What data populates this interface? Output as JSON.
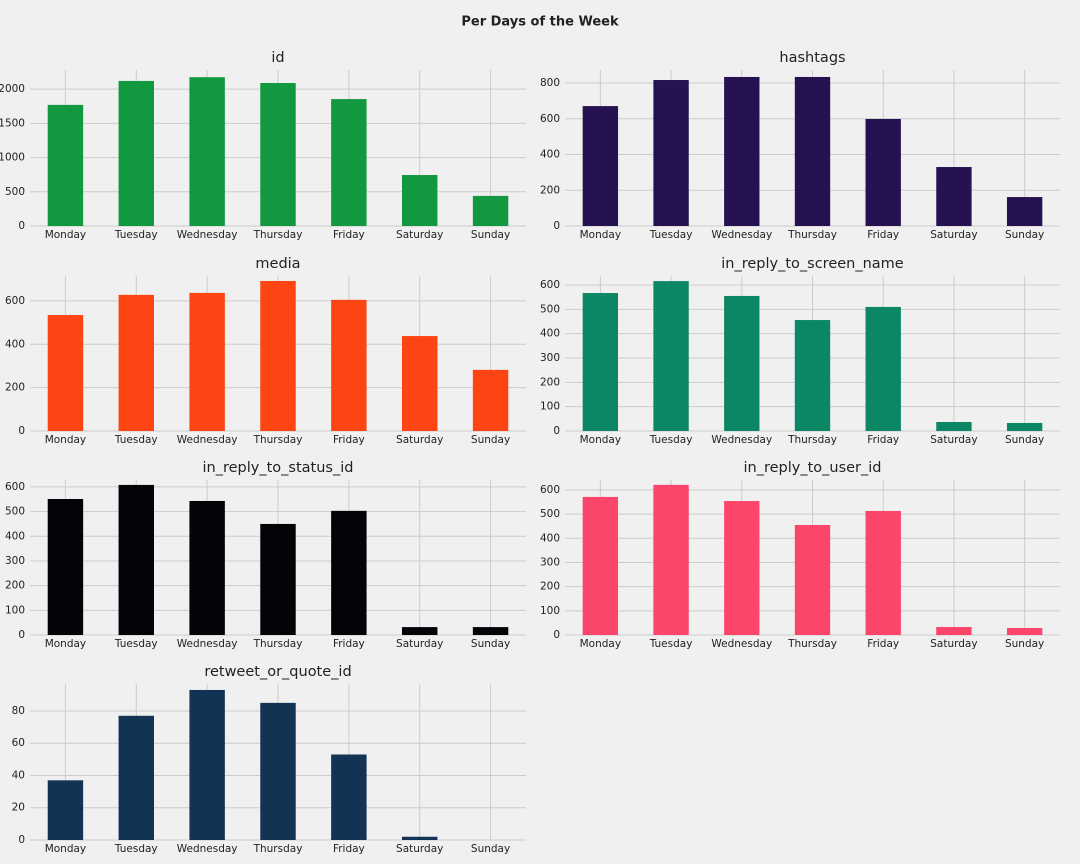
{
  "title": "Per Days of the Week",
  "chart_data": [
    {
      "type": "bar",
      "title": "id",
      "categories": [
        "Monday",
        "Tuesday",
        "Wednesday",
        "Thursday",
        "Friday",
        "Saturday",
        "Sunday"
      ],
      "values": [
        1770,
        2120,
        2175,
        2090,
        1855,
        745,
        440
      ],
      "color": "#12983e",
      "ylim": [
        0,
        2280
      ],
      "yticks": [
        0,
        500,
        1000,
        1500,
        2000
      ],
      "grid": true
    },
    {
      "type": "bar",
      "title": "hashtags",
      "categories": [
        "Monday",
        "Tuesday",
        "Wednesday",
        "Thursday",
        "Friday",
        "Saturday",
        "Sunday"
      ],
      "values": [
        671,
        817,
        834,
        834,
        599,
        330,
        162
      ],
      "color": "#261250",
      "ylim": [
        0,
        873
      ],
      "yticks": [
        0,
        200,
        400,
        600,
        800
      ],
      "grid": true
    },
    {
      "type": "bar",
      "title": "media",
      "categories": [
        "Monday",
        "Tuesday",
        "Wednesday",
        "Thursday",
        "Friday",
        "Saturday",
        "Sunday"
      ],
      "values": [
        535,
        628,
        637,
        692,
        605,
        438,
        282
      ],
      "color": "#fc4512",
      "ylim": [
        0,
        715
      ],
      "yticks": [
        0,
        200,
        400,
        600
      ],
      "grid": true
    },
    {
      "type": "bar",
      "title": "in_reply_to_screen_name",
      "categories": [
        "Monday",
        "Tuesday",
        "Wednesday",
        "Thursday",
        "Friday",
        "Saturday",
        "Sunday"
      ],
      "values": [
        567,
        616,
        555,
        456,
        510,
        37,
        33
      ],
      "color": "#0b8766",
      "ylim": [
        0,
        637
      ],
      "yticks": [
        0,
        100,
        200,
        300,
        400,
        500,
        600
      ],
      "grid": true
    },
    {
      "type": "bar",
      "title": "in_reply_to_status_id",
      "categories": [
        "Monday",
        "Tuesday",
        "Wednesday",
        "Thursday",
        "Friday",
        "Saturday",
        "Sunday"
      ],
      "values": [
        551,
        608,
        543,
        450,
        503,
        32,
        32
      ],
      "color": "#030308",
      "ylim": [
        0,
        628
      ],
      "yticks": [
        0,
        100,
        200,
        300,
        400,
        500,
        600
      ],
      "grid": true
    },
    {
      "type": "bar",
      "title": "in_reply_to_user_id",
      "categories": [
        "Monday",
        "Tuesday",
        "Wednesday",
        "Thursday",
        "Friday",
        "Saturday",
        "Sunday"
      ],
      "values": [
        571,
        621,
        554,
        455,
        513,
        33,
        29
      ],
      "color": "#fc456b",
      "ylim": [
        0,
        641
      ],
      "yticks": [
        0,
        100,
        200,
        300,
        400,
        500,
        600
      ],
      "grid": true
    },
    {
      "type": "bar",
      "title": "retweet_or_quote_id",
      "categories": [
        "Monday",
        "Tuesday",
        "Wednesday",
        "Thursday",
        "Friday",
        "Saturday",
        "Sunday"
      ],
      "values": [
        37,
        77,
        93,
        85,
        53,
        2,
        0
      ],
      "color": "#133355",
      "ylim": [
        0,
        96.7
      ],
      "yticks": [
        0,
        20,
        40,
        60,
        80
      ],
      "grid": true
    }
  ]
}
